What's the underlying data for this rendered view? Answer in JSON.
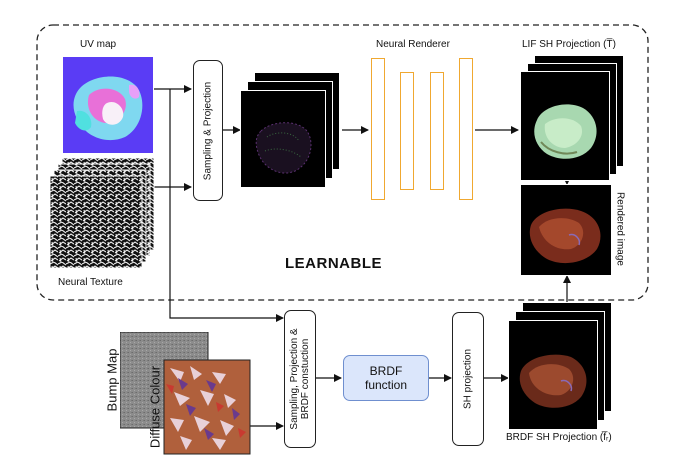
{
  "labels": {
    "uv_map": "UV map",
    "neural_texture": "Neural Texture",
    "sampling_projection": "Sampling & Projection",
    "neural_renderer": "Neural Renderer",
    "lif_sh_projection": "LIF SH Projection (T̅)",
    "rendered_image": "Rendered image",
    "learnable": "LEARNABLE",
    "bump_map": "Bump Map",
    "diffuse_colour": "Diffuse Colour",
    "sampling_projection_brdf_1": "Sampling, Projection &",
    "sampling_projection_brdf_2": "BRDF constuction",
    "brdf_function_1": "BRDF",
    "brdf_function_2": "function",
    "sh_projection": "SH projection",
    "brdf_sh_projection": "BRDF SH Projection (f̅ᵣ)"
  },
  "colors": {
    "neural_renderer_border": "#f0a830",
    "brdf_box_fill": "#dbe6fb",
    "brdf_box_border": "#6f8fcf",
    "learnable_region_border": "#222222"
  }
}
